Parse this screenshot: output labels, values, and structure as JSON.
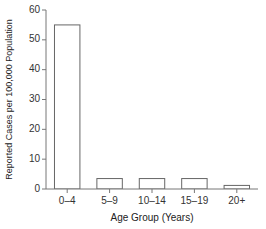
{
  "chart_data": {
    "type": "bar",
    "categories": [
      "0–4",
      "5–9",
      "10–14",
      "15–19",
      "20+"
    ],
    "values": [
      55,
      3.5,
      3.5,
      3.5,
      1.2
    ],
    "color": "#ffffff",
    "xlabel": "Age Group (Years)",
    "ylabel": "Reported Cases per 100,000 Population",
    "ylim": [
      0,
      60
    ],
    "yticks": [
      0,
      10,
      20,
      30,
      40,
      50,
      60
    ],
    "grid": false
  }
}
